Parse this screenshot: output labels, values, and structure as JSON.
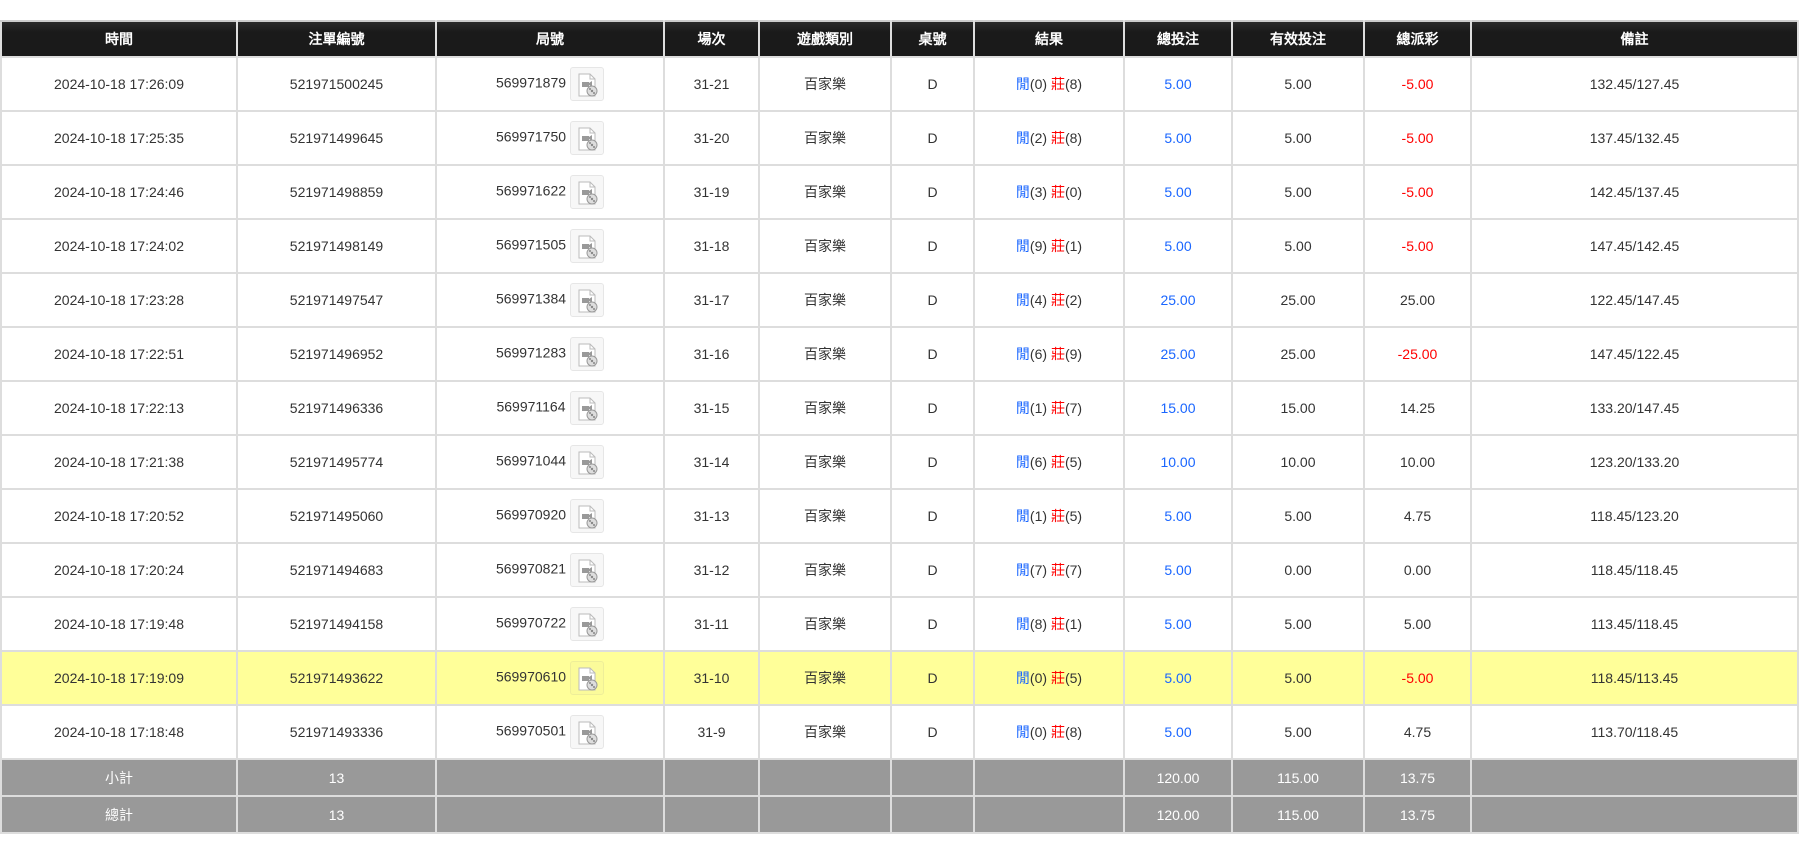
{
  "headers": [
    "時間",
    "注單編號",
    "局號",
    "場次",
    "遊戲類別",
    "桌號",
    "結果",
    "總投注",
    "有效投注",
    "總派彩",
    "備註"
  ],
  "result_labels": {
    "player": "閒",
    "banker": "莊"
  },
  "colors": {
    "header_bg": "#1a1a1a",
    "highlight": "#ffff99",
    "footer_bg": "#999999",
    "blue": "#1a66ff",
    "red": "#ff0000"
  },
  "rows": [
    {
      "time": "2024-10-18 17:26:09",
      "bet_id": "521971500245",
      "round": "569971879",
      "shoe": "31-21",
      "game": "百家樂",
      "table": "D",
      "player": "(0)",
      "banker": "(8)",
      "total_bet": "5.00",
      "valid_bet": "5.00",
      "payout": "-5.00",
      "payout_neg": true,
      "note": "132.45/127.45"
    },
    {
      "time": "2024-10-18 17:25:35",
      "bet_id": "521971499645",
      "round": "569971750",
      "shoe": "31-20",
      "game": "百家樂",
      "table": "D",
      "player": "(2)",
      "banker": "(8)",
      "total_bet": "5.00",
      "valid_bet": "5.00",
      "payout": "-5.00",
      "payout_neg": true,
      "note": "137.45/132.45"
    },
    {
      "time": "2024-10-18 17:24:46",
      "bet_id": "521971498859",
      "round": "569971622",
      "shoe": "31-19",
      "game": "百家樂",
      "table": "D",
      "player": "(3)",
      "banker": "(0)",
      "total_bet": "5.00",
      "valid_bet": "5.00",
      "payout": "-5.00",
      "payout_neg": true,
      "note": "142.45/137.45"
    },
    {
      "time": "2024-10-18 17:24:02",
      "bet_id": "521971498149",
      "round": "569971505",
      "shoe": "31-18",
      "game": "百家樂",
      "table": "D",
      "player": "(9)",
      "banker": "(1)",
      "total_bet": "5.00",
      "valid_bet": "5.00",
      "payout": "-5.00",
      "payout_neg": true,
      "note": "147.45/142.45"
    },
    {
      "time": "2024-10-18 17:23:28",
      "bet_id": "521971497547",
      "round": "569971384",
      "shoe": "31-17",
      "game": "百家樂",
      "table": "D",
      "player": "(4)",
      "banker": "(2)",
      "total_bet": "25.00",
      "valid_bet": "25.00",
      "payout": "25.00",
      "payout_neg": false,
      "note": "122.45/147.45"
    },
    {
      "time": "2024-10-18 17:22:51",
      "bet_id": "521971496952",
      "round": "569971283",
      "shoe": "31-16",
      "game": "百家樂",
      "table": "D",
      "player": "(6)",
      "banker": "(9)",
      "total_bet": "25.00",
      "valid_bet": "25.00",
      "payout": "-25.00",
      "payout_neg": true,
      "note": "147.45/122.45"
    },
    {
      "time": "2024-10-18 17:22:13",
      "bet_id": "521971496336",
      "round": "569971164",
      "shoe": "31-15",
      "game": "百家樂",
      "table": "D",
      "player": "(1)",
      "banker": "(7)",
      "total_bet": "15.00",
      "valid_bet": "15.00",
      "payout": "14.25",
      "payout_neg": false,
      "note": "133.20/147.45"
    },
    {
      "time": "2024-10-18 17:21:38",
      "bet_id": "521971495774",
      "round": "569971044",
      "shoe": "31-14",
      "game": "百家樂",
      "table": "D",
      "player": "(6)",
      "banker": "(5)",
      "total_bet": "10.00",
      "valid_bet": "10.00",
      "payout": "10.00",
      "payout_neg": false,
      "note": "123.20/133.20"
    },
    {
      "time": "2024-10-18 17:20:52",
      "bet_id": "521971495060",
      "round": "569970920",
      "shoe": "31-13",
      "game": "百家樂",
      "table": "D",
      "player": "(1)",
      "banker": "(5)",
      "total_bet": "5.00",
      "valid_bet": "5.00",
      "payout": "4.75",
      "payout_neg": false,
      "note": "118.45/123.20"
    },
    {
      "time": "2024-10-18 17:20:24",
      "bet_id": "521971494683",
      "round": "569970821",
      "shoe": "31-12",
      "game": "百家樂",
      "table": "D",
      "player": "(7)",
      "banker": "(7)",
      "total_bet": "5.00",
      "valid_bet": "0.00",
      "payout": "0.00",
      "payout_neg": false,
      "note": "118.45/118.45"
    },
    {
      "time": "2024-10-18 17:19:48",
      "bet_id": "521971494158",
      "round": "569970722",
      "shoe": "31-11",
      "game": "百家樂",
      "table": "D",
      "player": "(8)",
      "banker": "(1)",
      "total_bet": "5.00",
      "valid_bet": "5.00",
      "payout": "5.00",
      "payout_neg": false,
      "note": "113.45/118.45"
    },
    {
      "time": "2024-10-18 17:19:09",
      "bet_id": "521971493622",
      "round": "569970610",
      "shoe": "31-10",
      "game": "百家樂",
      "table": "D",
      "player": "(0)",
      "banker": "(5)",
      "total_bet": "5.00",
      "valid_bet": "5.00",
      "payout": "-5.00",
      "payout_neg": true,
      "note": "118.45/113.45",
      "highlighted": true
    },
    {
      "time": "2024-10-18 17:18:48",
      "bet_id": "521971493336",
      "round": "569970501",
      "shoe": "31-9",
      "game": "百家樂",
      "table": "D",
      "player": "(0)",
      "banker": "(8)",
      "total_bet": "5.00",
      "valid_bet": "5.00",
      "payout": "4.75",
      "payout_neg": false,
      "note": "113.70/118.45"
    }
  ],
  "subtotal": {
    "label": "小計",
    "count": "13",
    "total_bet": "120.00",
    "valid_bet": "115.00",
    "payout": "13.75"
  },
  "grandtotal": {
    "label": "總計",
    "count": "13",
    "total_bet": "120.00",
    "valid_bet": "115.00",
    "payout": "13.75"
  }
}
